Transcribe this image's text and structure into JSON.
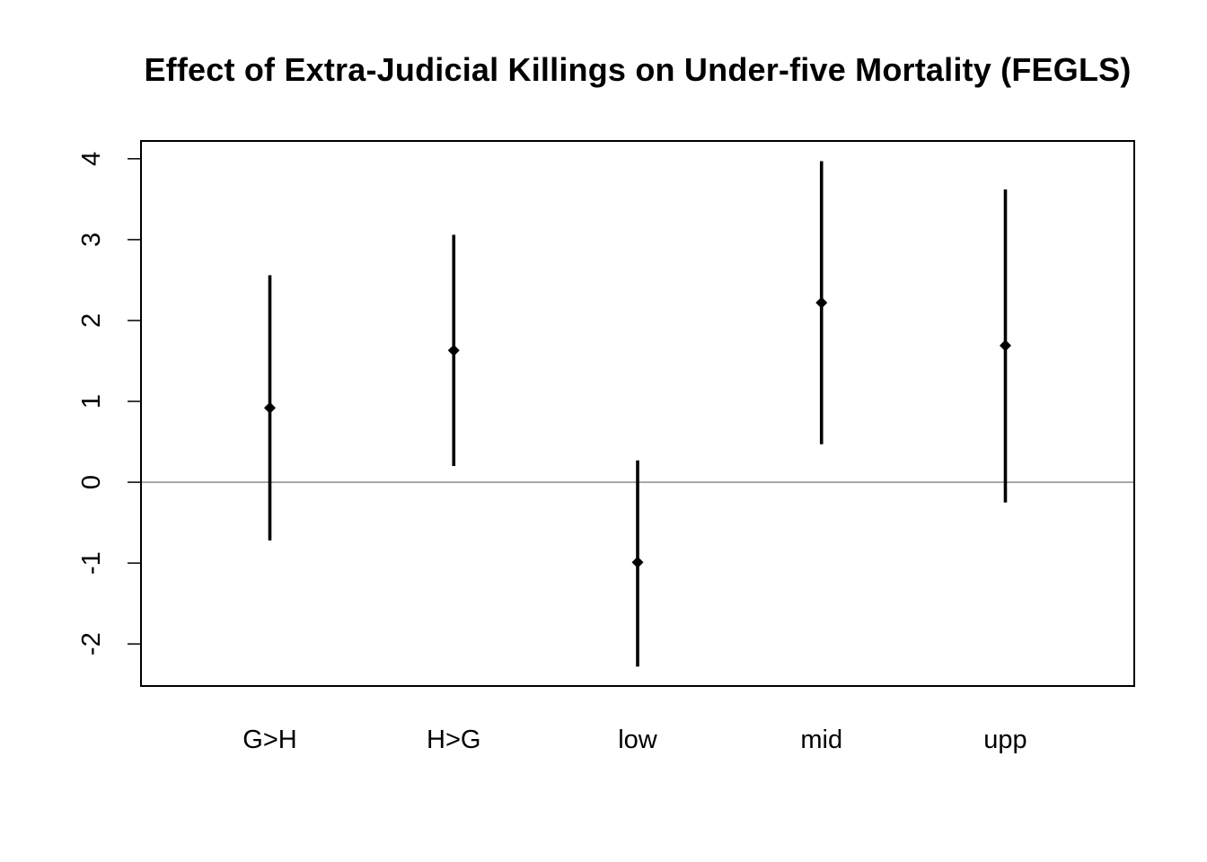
{
  "chart_data": {
    "type": "errorbar",
    "title": "Effect of Extra-Judicial Killings on Under-five Mortality (FEGLS)",
    "xlabel": "",
    "ylabel": "",
    "categories": [
      "G>H",
      "H>G",
      "low",
      "mid",
      "upp"
    ],
    "estimates": [
      0.92,
      1.63,
      -0.99,
      2.22,
      1.69
    ],
    "lower": [
      -0.72,
      0.2,
      -2.28,
      0.47,
      -0.25
    ],
    "upper": [
      2.56,
      3.06,
      0.27,
      3.97,
      3.62
    ],
    "y_ticks": [
      -2,
      -1,
      0,
      1,
      2,
      3,
      4
    ],
    "ylim": [
      -2.52,
      4.22
    ],
    "reference_line": 0,
    "grid": false,
    "colors": {
      "marks": "#000000",
      "reference_line": "#808080",
      "frame": "#000000"
    }
  }
}
